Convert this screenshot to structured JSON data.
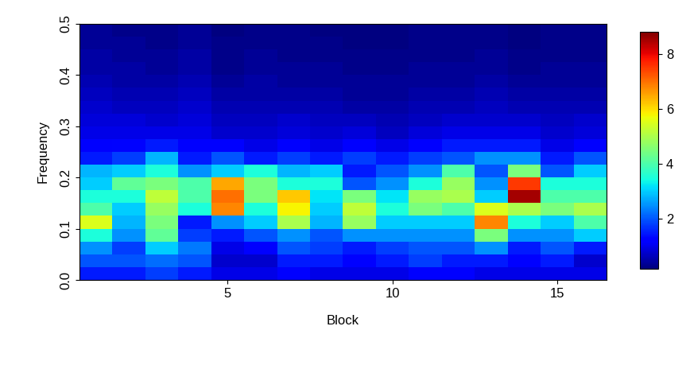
{
  "chart_data": {
    "type": "heatmap",
    "x_label": "Block",
    "y_label": "Frequency",
    "x": [
      1,
      2,
      3,
      4,
      5,
      6,
      7,
      8,
      9,
      10,
      11,
      12,
      13,
      14,
      15,
      16
    ],
    "y": [
      0.0125,
      0.0375,
      0.0625,
      0.0875,
      0.1125,
      0.1375,
      0.1625,
      0.1875,
      0.2125,
      0.2375,
      0.2625,
      0.2875,
      0.3125,
      0.3375,
      0.3625,
      0.3875,
      0.4125,
      0.4375,
      0.4625,
      0.4875
    ],
    "cells": [
      [
        1.5,
        2.0,
        2.5,
        3.5,
        5.5,
        4.0,
        3.5,
        3.0,
        2.8,
        1.5,
        1.2,
        1.0,
        0.9,
        0.8,
        0.7,
        0.6,
        0.5,
        0.5,
        0.4,
        0.4
      ],
      [
        1.5,
        2.0,
        1.8,
        2.5,
        2.8,
        3.0,
        3.5,
        4.2,
        3.0,
        1.8,
        1.3,
        1.0,
        0.9,
        0.7,
        0.6,
        0.5,
        0.5,
        0.4,
        0.4,
        0.3
      ],
      [
        1.8,
        2.2,
        3.0,
        4.2,
        4.5,
        4.8,
        5.2,
        4.5,
        3.5,
        2.8,
        1.5,
        1.0,
        0.8,
        0.7,
        0.6,
        0.5,
        0.4,
        0.4,
        0.3,
        0.3
      ],
      [
        1.5,
        2.0,
        2.3,
        1.8,
        1.5,
        3.5,
        4.0,
        4.0,
        2.5,
        1.5,
        1.2,
        1.0,
        0.9,
        0.8,
        0.7,
        0.6,
        0.5,
        0.5,
        0.4,
        0.4
      ],
      [
        1.0,
        0.8,
        1.0,
        1.5,
        2.5,
        6.8,
        7.0,
        6.5,
        3.0,
        2.0,
        1.2,
        0.8,
        0.7,
        0.6,
        0.5,
        0.4,
        0.3,
        0.3,
        0.3,
        0.2
      ],
      [
        1.0,
        0.8,
        1.2,
        2.0,
        3.0,
        3.5,
        4.5,
        4.5,
        3.5,
        1.5,
        1.0,
        0.8,
        0.7,
        0.6,
        0.5,
        0.5,
        0.4,
        0.4,
        0.3,
        0.3
      ],
      [
        1.2,
        1.5,
        2.0,
        2.5,
        5.0,
        5.8,
        6.2,
        3.5,
        2.8,
        1.8,
        1.2,
        0.9,
        0.8,
        0.6,
        0.5,
        0.4,
        0.4,
        0.3,
        0.3,
        0.3
      ],
      [
        1.0,
        1.5,
        1.8,
        2.0,
        2.8,
        3.0,
        3.2,
        3.5,
        3.0,
        1.5,
        1.0,
        0.8,
        0.7,
        0.6,
        0.5,
        0.4,
        0.4,
        0.3,
        0.3,
        0.2
      ],
      [
        1.0,
        1.2,
        1.5,
        2.5,
        4.8,
        5.2,
        4.5,
        2.0,
        1.5,
        1.8,
        1.2,
        0.9,
        0.7,
        0.5,
        0.4,
        0.4,
        0.3,
        0.3,
        0.2,
        0.2
      ],
      [
        1.0,
        1.5,
        1.8,
        2.5,
        3.0,
        3.5,
        3.2,
        2.5,
        2.0,
        1.5,
        1.0,
        0.7,
        0.6,
        0.5,
        0.4,
        0.4,
        0.3,
        0.3,
        0.2,
        0.2
      ],
      [
        1.2,
        1.8,
        2.0,
        2.5,
        3.0,
        4.5,
        4.8,
        3.5,
        2.5,
        1.8,
        1.2,
        0.9,
        0.7,
        0.6,
        0.5,
        0.4,
        0.4,
        0.3,
        0.3,
        0.3
      ],
      [
        1.2,
        1.5,
        2.0,
        2.5,
        3.0,
        4.0,
        5.0,
        4.8,
        4.0,
        2.0,
        1.5,
        1.0,
        0.8,
        0.6,
        0.5,
        0.4,
        0.4,
        0.3,
        0.3,
        0.3
      ],
      [
        1.0,
        1.5,
        2.5,
        4.5,
        6.8,
        5.5,
        3.0,
        2.5,
        2.0,
        2.5,
        1.5,
        1.0,
        0.8,
        0.7,
        0.6,
        0.5,
        0.4,
        0.4,
        0.3,
        0.3
      ],
      [
        1.0,
        1.2,
        1.5,
        2.5,
        3.5,
        5.0,
        8.5,
        7.5,
        4.5,
        2.5,
        1.5,
        1.0,
        0.8,
        0.6,
        0.5,
        0.4,
        0.3,
        0.3,
        0.2,
        0.2
      ],
      [
        1.0,
        1.5,
        2.0,
        2.5,
        3.0,
        4.5,
        4.0,
        3.5,
        2.0,
        1.5,
        1.0,
        0.8,
        0.7,
        0.6,
        0.5,
        0.4,
        0.4,
        0.3,
        0.3,
        0.3
      ],
      [
        1.0,
        0.8,
        1.5,
        3.0,
        4.0,
        5.0,
        4.0,
        3.5,
        3.0,
        2.0,
        1.2,
        0.9,
        0.8,
        0.6,
        0.5,
        0.4,
        0.4,
        0.3,
        0.3,
        0.3
      ]
    ],
    "xlim": [
      0.5,
      16.5
    ],
    "xticks": [
      5,
      10,
      15
    ],
    "ylim": [
      0,
      0.5
    ],
    "yticks": [
      0.0,
      0.1,
      0.2,
      0.3,
      0.4,
      0.5
    ],
    "colorbar": {
      "range": [
        0.2,
        8.8
      ],
      "ticks": [
        2,
        4,
        6,
        8
      ]
    }
  }
}
